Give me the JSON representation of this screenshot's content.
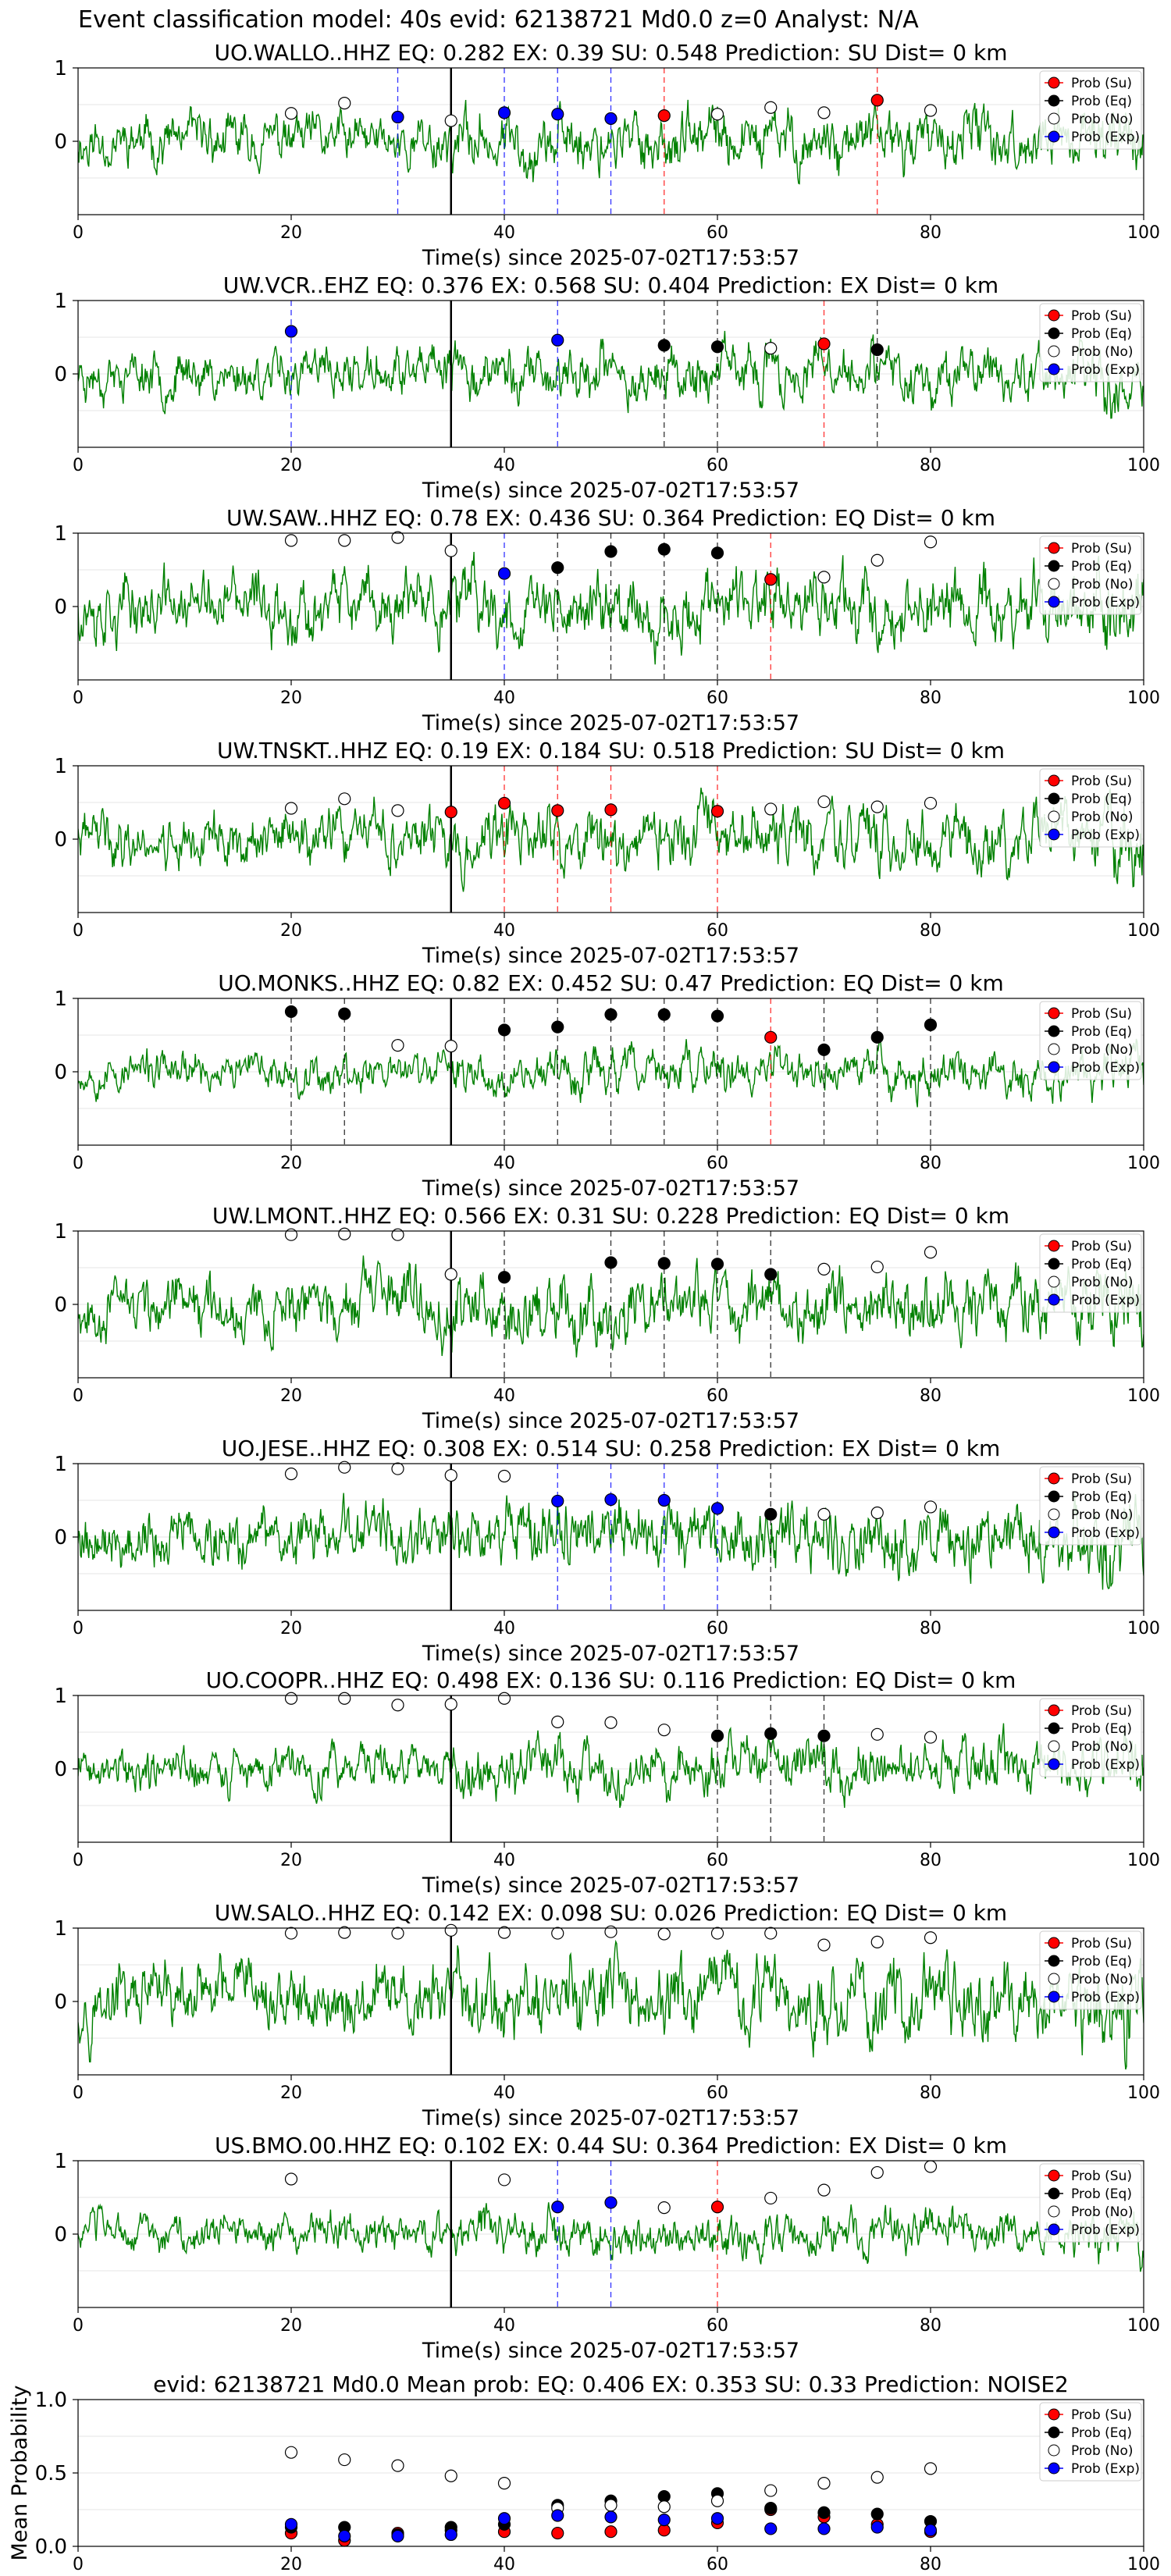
{
  "suptitle": "Event classification model: 40s evid: 62138721 Md0.0 z=0 Analyst: N/A",
  "colors": {
    "su": "#ff0000",
    "eq": "#000000",
    "no": "#ffffff",
    "exp": "#0000ff",
    "trace": "#008000"
  },
  "legend_labels": [
    "Prob (Su)",
    "Prob (Eq)",
    "Prob (No)",
    "Prob (Exp)"
  ],
  "x_ticks": [
    "0",
    "20",
    "40",
    "60",
    "80",
    "100"
  ],
  "trace_y_ticks": [
    "1",
    "0"
  ],
  "mean_y_ticks": [
    "1.0",
    "0.5",
    "0.0"
  ],
  "chart_data": [
    {
      "type": "scatter",
      "station": "UO.WALLO..HHZ",
      "title": "UO.WALLO..HHZ   EQ: 0.282  EX: 0.39  SU: 0.548   Prediction: SU    Dist= 0 km",
      "xlabel": "Time(s) since 2025-07-02T17:53:57",
      "xlim": [
        0,
        100
      ],
      "ylim": [
        -1,
        1
      ],
      "pick_time": 35,
      "amplitude": 0.6,
      "seed": 11,
      "points": [
        {
          "x": 20,
          "y": 0.38,
          "cls": "no"
        },
        {
          "x": 25,
          "y": 0.52,
          "cls": "no"
        },
        {
          "x": 30,
          "y": 0.33,
          "cls": "exp"
        },
        {
          "x": 35,
          "y": 0.28,
          "cls": "no"
        },
        {
          "x": 40,
          "y": 0.39,
          "cls": "exp"
        },
        {
          "x": 45,
          "y": 0.37,
          "cls": "exp"
        },
        {
          "x": 50,
          "y": 0.31,
          "cls": "exp"
        },
        {
          "x": 55,
          "y": 0.35,
          "cls": "su"
        },
        {
          "x": 60,
          "y": 0.37,
          "cls": "no"
        },
        {
          "x": 65,
          "y": 0.46,
          "cls": "no"
        },
        {
          "x": 70,
          "y": 0.39,
          "cls": "no"
        },
        {
          "x": 75,
          "y": 0.56,
          "cls": "su"
        },
        {
          "x": 80,
          "y": 0.42,
          "cls": "no"
        }
      ]
    },
    {
      "type": "scatter",
      "station": "UW.VCR..EHZ",
      "title": "UW.VCR..EHZ   EQ: 0.376  EX: 0.568  SU: 0.404   Prediction: EX    Dist= 0 km",
      "xlabel": "Time(s) since 2025-07-02T17:53:57",
      "xlim": [
        0,
        100
      ],
      "ylim": [
        -1,
        1
      ],
      "pick_time": 35,
      "amplitude": 0.55,
      "seed": 23,
      "points": [
        {
          "x": 20,
          "y": 0.58,
          "cls": "exp"
        },
        {
          "x": 45,
          "y": 0.46,
          "cls": "exp"
        },
        {
          "x": 55,
          "y": 0.39,
          "cls": "eq"
        },
        {
          "x": 60,
          "y": 0.37,
          "cls": "eq"
        },
        {
          "x": 65,
          "y": 0.35,
          "cls": "no"
        },
        {
          "x": 70,
          "y": 0.41,
          "cls": "su"
        },
        {
          "x": 75,
          "y": 0.33,
          "cls": "eq"
        }
      ]
    },
    {
      "type": "scatter",
      "station": "UW.SAW..HHZ",
      "title": "UW.SAW..HHZ   EQ: 0.78  EX: 0.436  SU: 0.364   Prediction: EQ    Dist= 0 km",
      "xlabel": "Time(s) since 2025-07-02T17:53:57",
      "xlim": [
        0,
        100
      ],
      "ylim": [
        -1,
        1
      ],
      "pick_time": 35,
      "amplitude": 0.75,
      "seed": 37,
      "points": [
        {
          "x": 20,
          "y": 0.9,
          "cls": "no"
        },
        {
          "x": 25,
          "y": 0.9,
          "cls": "no"
        },
        {
          "x": 30,
          "y": 0.94,
          "cls": "no"
        },
        {
          "x": 35,
          "y": 0.76,
          "cls": "no"
        },
        {
          "x": 40,
          "y": 0.45,
          "cls": "exp"
        },
        {
          "x": 45,
          "y": 0.53,
          "cls": "eq"
        },
        {
          "x": 50,
          "y": 0.75,
          "cls": "eq"
        },
        {
          "x": 55,
          "y": 0.78,
          "cls": "eq"
        },
        {
          "x": 60,
          "y": 0.73,
          "cls": "eq"
        },
        {
          "x": 65,
          "y": 0.37,
          "cls": "su"
        },
        {
          "x": 70,
          "y": 0.4,
          "cls": "no"
        },
        {
          "x": 75,
          "y": 0.63,
          "cls": "no"
        },
        {
          "x": 80,
          "y": 0.88,
          "cls": "no"
        }
      ]
    },
    {
      "type": "scatter",
      "station": "UW.TNSKT..HHZ",
      "title": "UW.TNSKT..HHZ   EQ: 0.19  EX: 0.184  SU: 0.518   Prediction: SU    Dist= 0 km",
      "xlabel": "Time(s) since 2025-07-02T17:53:57",
      "xlim": [
        0,
        100
      ],
      "ylim": [
        -1,
        1
      ],
      "pick_time": 35,
      "amplitude": 0.65,
      "seed": 41,
      "points": [
        {
          "x": 20,
          "y": 0.42,
          "cls": "no"
        },
        {
          "x": 25,
          "y": 0.55,
          "cls": "no"
        },
        {
          "x": 30,
          "y": 0.39,
          "cls": "no"
        },
        {
          "x": 35,
          "y": 0.37,
          "cls": "su"
        },
        {
          "x": 40,
          "y": 0.49,
          "cls": "su"
        },
        {
          "x": 45,
          "y": 0.39,
          "cls": "su"
        },
        {
          "x": 50,
          "y": 0.4,
          "cls": "su"
        },
        {
          "x": 60,
          "y": 0.38,
          "cls": "su"
        },
        {
          "x": 65,
          "y": 0.41,
          "cls": "no"
        },
        {
          "x": 70,
          "y": 0.51,
          "cls": "no"
        },
        {
          "x": 75,
          "y": 0.44,
          "cls": "no"
        },
        {
          "x": 80,
          "y": 0.49,
          "cls": "no"
        }
      ]
    },
    {
      "type": "scatter",
      "station": "UO.MONKS..HHZ",
      "title": "UO.MONKS..HHZ   EQ: 0.82  EX: 0.452  SU: 0.47   Prediction: EQ    Dist= 0 km",
      "xlabel": "Time(s) since 2025-07-02T17:53:57",
      "xlim": [
        0,
        100
      ],
      "ylim": [
        -1,
        1
      ],
      "pick_time": 35,
      "amplitude": 0.45,
      "seed": 53,
      "points": [
        {
          "x": 20,
          "y": 0.82,
          "cls": "eq"
        },
        {
          "x": 25,
          "y": 0.79,
          "cls": "eq"
        },
        {
          "x": 30,
          "y": 0.36,
          "cls": "no"
        },
        {
          "x": 35,
          "y": 0.35,
          "cls": "no"
        },
        {
          "x": 40,
          "y": 0.57,
          "cls": "eq"
        },
        {
          "x": 45,
          "y": 0.61,
          "cls": "eq"
        },
        {
          "x": 50,
          "y": 0.78,
          "cls": "eq"
        },
        {
          "x": 55,
          "y": 0.78,
          "cls": "eq"
        },
        {
          "x": 60,
          "y": 0.76,
          "cls": "eq"
        },
        {
          "x": 65,
          "y": 0.47,
          "cls": "su"
        },
        {
          "x": 70,
          "y": 0.3,
          "cls": "eq"
        },
        {
          "x": 75,
          "y": 0.47,
          "cls": "eq"
        },
        {
          "x": 80,
          "y": 0.64,
          "cls": "eq"
        }
      ]
    },
    {
      "type": "scatter",
      "station": "UW.LMONT..HHZ",
      "title": "UW.LMONT..HHZ   EQ: 0.566  EX: 0.31  SU: 0.228   Prediction: EQ    Dist= 0 km",
      "xlabel": "Time(s) since 2025-07-02T17:53:57",
      "xlim": [
        0,
        100
      ],
      "ylim": [
        -1,
        1
      ],
      "pick_time": 35,
      "amplitude": 0.7,
      "seed": 67,
      "points": [
        {
          "x": 20,
          "y": 0.95,
          "cls": "no"
        },
        {
          "x": 25,
          "y": 0.96,
          "cls": "no"
        },
        {
          "x": 30,
          "y": 0.95,
          "cls": "no"
        },
        {
          "x": 35,
          "y": 0.41,
          "cls": "no"
        },
        {
          "x": 40,
          "y": 0.37,
          "cls": "eq"
        },
        {
          "x": 50,
          "y": 0.57,
          "cls": "eq"
        },
        {
          "x": 55,
          "y": 0.56,
          "cls": "eq"
        },
        {
          "x": 60,
          "y": 0.55,
          "cls": "eq"
        },
        {
          "x": 65,
          "y": 0.41,
          "cls": "eq"
        },
        {
          "x": 70,
          "y": 0.48,
          "cls": "no"
        },
        {
          "x": 75,
          "y": 0.51,
          "cls": "no"
        },
        {
          "x": 80,
          "y": 0.71,
          "cls": "no"
        }
      ]
    },
    {
      "type": "scatter",
      "station": "UO.JESE..HHZ",
      "title": "UO.JESE..HHZ   EQ: 0.308  EX: 0.514  SU: 0.258   Prediction: EX    Dist= 0 km",
      "xlabel": "Time(s) since 2025-07-02T17:53:57",
      "xlim": [
        0,
        100
      ],
      "ylim": [
        -1,
        1
      ],
      "pick_time": 35,
      "amplitude": 0.7,
      "seed": 79,
      "points": [
        {
          "x": 20,
          "y": 0.86,
          "cls": "no"
        },
        {
          "x": 25,
          "y": 0.95,
          "cls": "no"
        },
        {
          "x": 30,
          "y": 0.93,
          "cls": "no"
        },
        {
          "x": 35,
          "y": 0.84,
          "cls": "no"
        },
        {
          "x": 40,
          "y": 0.83,
          "cls": "no"
        },
        {
          "x": 45,
          "y": 0.49,
          "cls": "exp"
        },
        {
          "x": 50,
          "y": 0.51,
          "cls": "exp"
        },
        {
          "x": 55,
          "y": 0.5,
          "cls": "exp"
        },
        {
          "x": 60,
          "y": 0.39,
          "cls": "exp"
        },
        {
          "x": 65,
          "y": 0.31,
          "cls": "eq"
        },
        {
          "x": 70,
          "y": 0.31,
          "cls": "no"
        },
        {
          "x": 75,
          "y": 0.33,
          "cls": "no"
        },
        {
          "x": 80,
          "y": 0.41,
          "cls": "no"
        }
      ]
    },
    {
      "type": "scatter",
      "station": "UO.COOPR..HHZ",
      "title": "UO.COOPR..HHZ   EQ: 0.498  EX: 0.136  SU: 0.116   Prediction: EQ    Dist= 0 km",
      "xlabel": "Time(s) since 2025-07-02T17:53:57",
      "xlim": [
        0,
        100
      ],
      "ylim": [
        -1,
        1
      ],
      "pick_time": 35,
      "amplitude": 0.55,
      "seed": 89,
      "points": [
        {
          "x": 20,
          "y": 0.96,
          "cls": "no"
        },
        {
          "x": 25,
          "y": 0.96,
          "cls": "no"
        },
        {
          "x": 30,
          "y": 0.87,
          "cls": "no"
        },
        {
          "x": 35,
          "y": 0.88,
          "cls": "no"
        },
        {
          "x": 40,
          "y": 0.96,
          "cls": "no"
        },
        {
          "x": 45,
          "y": 0.64,
          "cls": "no"
        },
        {
          "x": 50,
          "y": 0.63,
          "cls": "no"
        },
        {
          "x": 55,
          "y": 0.53,
          "cls": "no"
        },
        {
          "x": 60,
          "y": 0.45,
          "cls": "eq"
        },
        {
          "x": 65,
          "y": 0.48,
          "cls": "eq"
        },
        {
          "x": 70,
          "y": 0.45,
          "cls": "eq"
        },
        {
          "x": 75,
          "y": 0.47,
          "cls": "no"
        },
        {
          "x": 80,
          "y": 0.43,
          "cls": "no"
        }
      ]
    },
    {
      "type": "scatter",
      "station": "UW.SALO..HHZ",
      "title": "UW.SALO..HHZ   EQ: 0.142  EX: 0.098  SU: 0.026   Prediction: EQ    Dist= 0 km",
      "xlabel": "Time(s) since 2025-07-02T17:53:57",
      "xlim": [
        0,
        100
      ],
      "ylim": [
        -1,
        1
      ],
      "pick_time": 35,
      "amplitude": 0.8,
      "seed": 97,
      "points": [
        {
          "x": 20,
          "y": 0.93,
          "cls": "no"
        },
        {
          "x": 25,
          "y": 0.94,
          "cls": "no"
        },
        {
          "x": 30,
          "y": 0.93,
          "cls": "no"
        },
        {
          "x": 35,
          "y": 0.97,
          "cls": "no"
        },
        {
          "x": 40,
          "y": 0.94,
          "cls": "no"
        },
        {
          "x": 45,
          "y": 0.93,
          "cls": "no"
        },
        {
          "x": 50,
          "y": 0.95,
          "cls": "no"
        },
        {
          "x": 55,
          "y": 0.92,
          "cls": "no"
        },
        {
          "x": 60,
          "y": 0.93,
          "cls": "no"
        },
        {
          "x": 65,
          "y": 0.93,
          "cls": "no"
        },
        {
          "x": 70,
          "y": 0.77,
          "cls": "no"
        },
        {
          "x": 75,
          "y": 0.81,
          "cls": "no"
        },
        {
          "x": 80,
          "y": 0.87,
          "cls": "no"
        }
      ]
    },
    {
      "type": "scatter",
      "station": "US.BMO.00.HHZ",
      "title": "US.BMO.00.HHZ   EQ: 0.102  EX: 0.44  SU: 0.364   Prediction: EX    Dist= 0 km",
      "xlabel": "Time(s) since 2025-07-02T17:53:57",
      "xlim": [
        0,
        100
      ],
      "ylim": [
        -1,
        1
      ],
      "pick_time": 35,
      "amplitude": 0.45,
      "seed": 103,
      "points": [
        {
          "x": 20,
          "y": 0.75,
          "cls": "no"
        },
        {
          "x": 40,
          "y": 0.74,
          "cls": "no"
        },
        {
          "x": 45,
          "y": 0.37,
          "cls": "exp"
        },
        {
          "x": 50,
          "y": 0.43,
          "cls": "exp"
        },
        {
          "x": 55,
          "y": 0.36,
          "cls": "no"
        },
        {
          "x": 60,
          "y": 0.37,
          "cls": "su"
        },
        {
          "x": 65,
          "y": 0.49,
          "cls": "no"
        },
        {
          "x": 70,
          "y": 0.6,
          "cls": "no"
        },
        {
          "x": 75,
          "y": 0.84,
          "cls": "no"
        },
        {
          "x": 80,
          "y": 0.92,
          "cls": "no"
        }
      ]
    },
    {
      "type": "scatter",
      "station": "mean",
      "title": "evid: 62138721  Md0.0   Mean prob:   EQ: 0.406  EX: 0.353  SU: 0.33   Prediction: NOISE2",
      "ylabel": "Mean Probability",
      "xlim": [
        0,
        100
      ],
      "ylim": [
        0,
        1
      ],
      "series": [
        {
          "name": "Prob (Su)",
          "cls": "su",
          "x": [
            20,
            25,
            30,
            35,
            40,
            45,
            50,
            55,
            60,
            65,
            70,
            75,
            80
          ],
          "values": [
            0.09,
            0.04,
            0.09,
            0.11,
            0.1,
            0.09,
            0.1,
            0.11,
            0.16,
            0.25,
            0.2,
            0.15,
            0.1
          ]
        },
        {
          "name": "Prob (Eq)",
          "cls": "eq",
          "x": [
            20,
            25,
            30,
            35,
            40,
            45,
            50,
            55,
            60,
            65,
            70,
            75,
            80
          ],
          "values": [
            0.13,
            0.13,
            0.08,
            0.13,
            0.15,
            0.28,
            0.31,
            0.34,
            0.36,
            0.26,
            0.23,
            0.22,
            0.17
          ]
        },
        {
          "name": "Prob (No)",
          "cls": "no",
          "x": [
            20,
            25,
            30,
            35,
            40,
            45,
            50,
            55,
            60,
            65,
            70,
            75,
            80
          ],
          "values": [
            0.64,
            0.59,
            0.55,
            0.48,
            0.43,
            0.26,
            0.28,
            0.27,
            0.31,
            0.38,
            0.43,
            0.47,
            0.53
          ]
        },
        {
          "name": "Prob (Exp)",
          "cls": "exp",
          "x": [
            20,
            25,
            30,
            35,
            40,
            45,
            50,
            55,
            60,
            65,
            70,
            75,
            80
          ],
          "values": [
            0.15,
            0.07,
            0.07,
            0.08,
            0.19,
            0.21,
            0.2,
            0.18,
            0.19,
            0.12,
            0.12,
            0.13,
            0.11
          ]
        }
      ]
    }
  ]
}
